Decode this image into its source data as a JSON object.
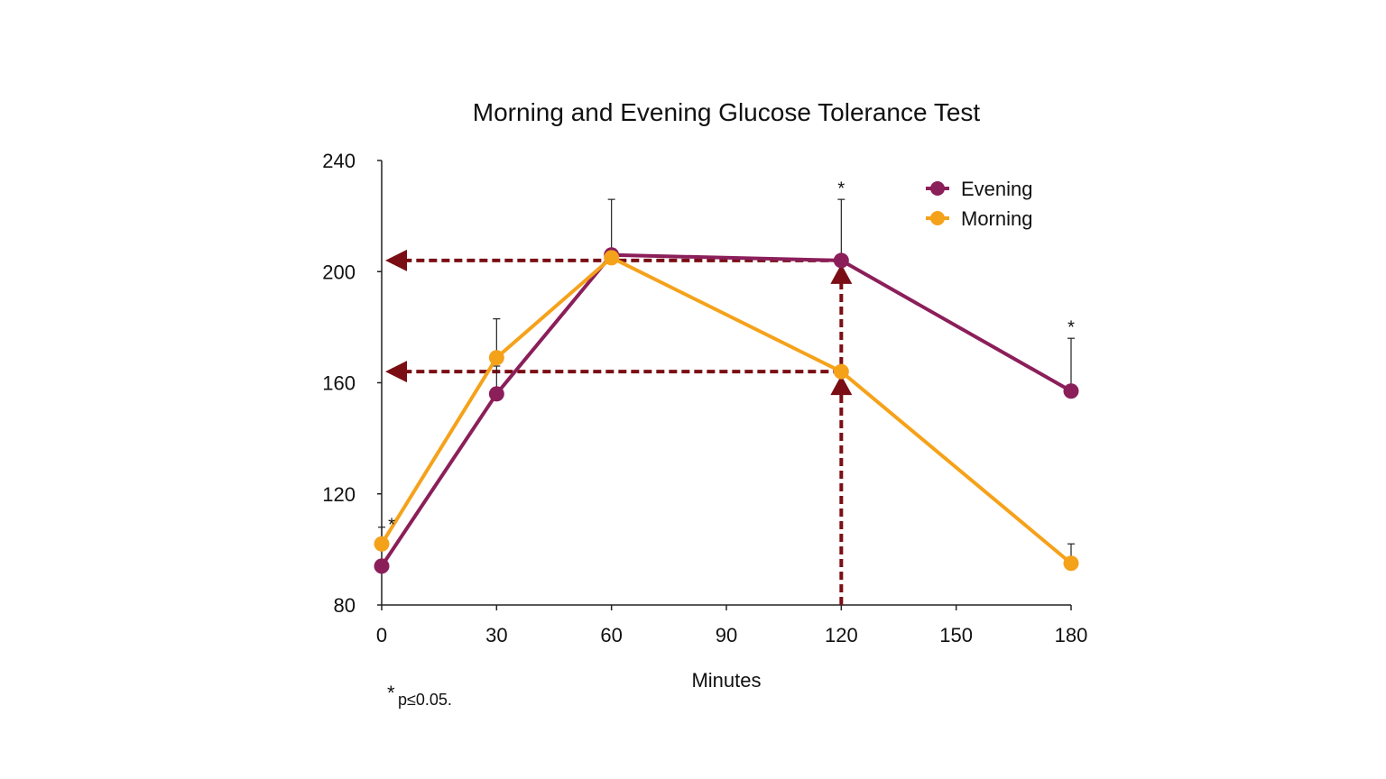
{
  "chart_data": {
    "type": "line",
    "title": "Morning and Evening Glucose Tolerance Test",
    "xlabel": "Minutes",
    "ylabel": "",
    "x": [
      0,
      30,
      60,
      120,
      180
    ],
    "xticks": [
      0,
      30,
      60,
      90,
      120,
      150,
      180
    ],
    "xlim": [
      0,
      180
    ],
    "yticks": [
      80,
      120,
      160,
      200,
      240
    ],
    "ylim": [
      80,
      240
    ],
    "grid": false,
    "legend": "top-right",
    "series": [
      {
        "name": "Evening",
        "color": "#8B1F5A",
        "values": [
          94,
          156,
          206,
          204,
          157
        ],
        "errors": [
          null,
          10,
          20,
          22,
          19
        ]
      },
      {
        "name": "Morning",
        "color": "#F5A21B",
        "values": [
          102,
          169,
          205,
          164,
          95
        ],
        "errors": [
          6,
          14,
          null,
          null,
          7
        ]
      }
    ],
    "significance": {
      "symbol": "*",
      "points": [
        {
          "x": 0,
          "y": 112
        },
        {
          "x": 120,
          "y": 233
        },
        {
          "x": 180,
          "y": 183
        }
      ]
    },
    "annotations": {
      "color": "#7A0E14",
      "vertical": {
        "x": 120,
        "y_from": 80,
        "y_to": 204,
        "arrow_at_values": [
          164,
          204
        ]
      },
      "horizontal": [
        {
          "y": 204,
          "x_from": 120,
          "x_to": 0
        },
        {
          "y": 164,
          "x_from": 120,
          "x_to": 0
        }
      ]
    },
    "footnote": {
      "symbol": "*",
      "text": "p≤0.05."
    }
  }
}
